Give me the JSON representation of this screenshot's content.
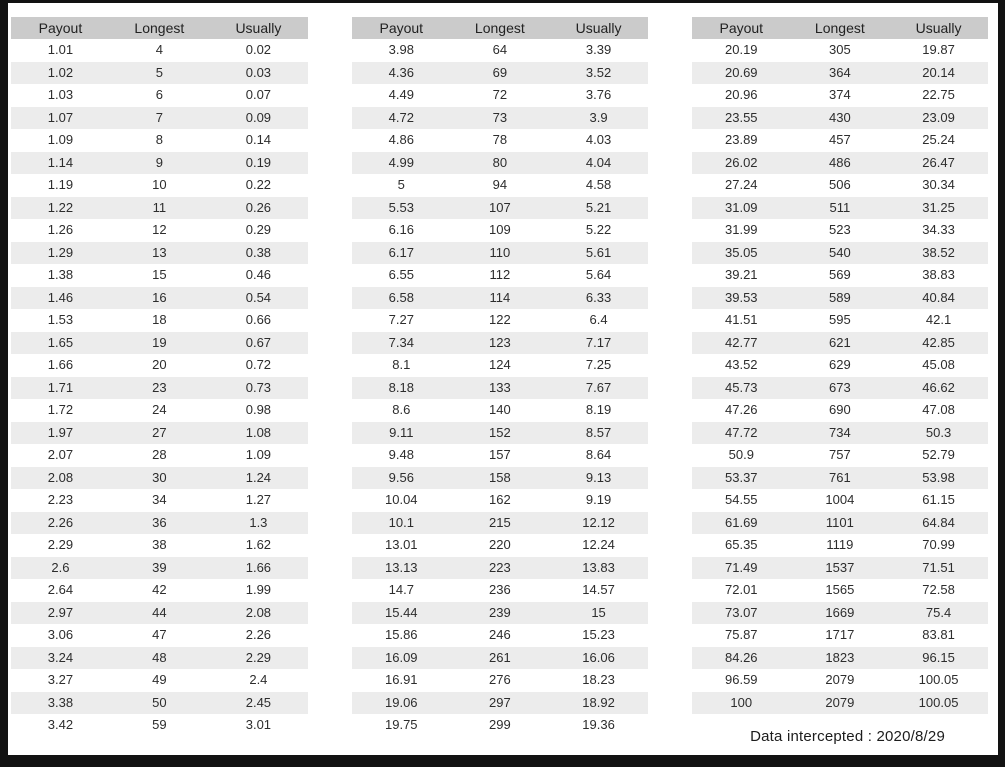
{
  "colors": {
    "outer_border": "#121212",
    "page_background": "#ffffff",
    "header_background": "#cbcbcb",
    "stripe_background": "#ececec",
    "text": "#2d2d2d"
  },
  "chart_data": {
    "type": "table",
    "columns": [
      "Payout",
      "Longest",
      "Usually"
    ],
    "caption": "Data intercepted : 2020/8/29",
    "tables": [
      {
        "rows": [
          [
            "1.01",
            "4",
            "0.02"
          ],
          [
            "1.02",
            "5",
            "0.03"
          ],
          [
            "1.03",
            "6",
            "0.07"
          ],
          [
            "1.07",
            "7",
            "0.09"
          ],
          [
            "1.09",
            "8",
            "0.14"
          ],
          [
            "1.14",
            "9",
            "0.19"
          ],
          [
            "1.19",
            "10",
            "0.22"
          ],
          [
            "1.22",
            "11",
            "0.26"
          ],
          [
            "1.26",
            "12",
            "0.29"
          ],
          [
            "1.29",
            "13",
            "0.38"
          ],
          [
            "1.38",
            "15",
            "0.46"
          ],
          [
            "1.46",
            "16",
            "0.54"
          ],
          [
            "1.53",
            "18",
            "0.66"
          ],
          [
            "1.65",
            "19",
            "0.67"
          ],
          [
            "1.66",
            "20",
            "0.72"
          ],
          [
            "1.71",
            "23",
            "0.73"
          ],
          [
            "1.72",
            "24",
            "0.98"
          ],
          [
            "1.97",
            "27",
            "1.08"
          ],
          [
            "2.07",
            "28",
            "1.09"
          ],
          [
            "2.08",
            "30",
            "1.24"
          ],
          [
            "2.23",
            "34",
            "1.27"
          ],
          [
            "2.26",
            "36",
            "1.3"
          ],
          [
            "2.29",
            "38",
            "1.62"
          ],
          [
            "2.6",
            "39",
            "1.66"
          ],
          [
            "2.64",
            "42",
            "1.99"
          ],
          [
            "2.97",
            "44",
            "2.08"
          ],
          [
            "3.06",
            "47",
            "2.26"
          ],
          [
            "3.24",
            "48",
            "2.29"
          ],
          [
            "3.27",
            "49",
            "2.4"
          ],
          [
            "3.38",
            "50",
            "2.45"
          ],
          [
            "3.42",
            "59",
            "3.01"
          ]
        ]
      },
      {
        "rows": [
          [
            "3.98",
            "64",
            "3.39"
          ],
          [
            "4.36",
            "69",
            "3.52"
          ],
          [
            "4.49",
            "72",
            "3.76"
          ],
          [
            "4.72",
            "73",
            "3.9"
          ],
          [
            "4.86",
            "78",
            "4.03"
          ],
          [
            "4.99",
            "80",
            "4.04"
          ],
          [
            "5",
            "94",
            "4.58"
          ],
          [
            "5.53",
            "107",
            "5.21"
          ],
          [
            "6.16",
            "109",
            "5.22"
          ],
          [
            "6.17",
            "110",
            "5.61"
          ],
          [
            "6.55",
            "112",
            "5.64"
          ],
          [
            "6.58",
            "114",
            "6.33"
          ],
          [
            "7.27",
            "122",
            "6.4"
          ],
          [
            "7.34",
            "123",
            "7.17"
          ],
          [
            "8.1",
            "124",
            "7.25"
          ],
          [
            "8.18",
            "133",
            "7.67"
          ],
          [
            "8.6",
            "140",
            "8.19"
          ],
          [
            "9.11",
            "152",
            "8.57"
          ],
          [
            "9.48",
            "157",
            "8.64"
          ],
          [
            "9.56",
            "158",
            "9.13"
          ],
          [
            "10.04",
            "162",
            "9.19"
          ],
          [
            "10.1",
            "215",
            "12.12"
          ],
          [
            "13.01",
            "220",
            "12.24"
          ],
          [
            "13.13",
            "223",
            "13.83"
          ],
          [
            "14.7",
            "236",
            "14.57"
          ],
          [
            "15.44",
            "239",
            "15"
          ],
          [
            "15.86",
            "246",
            "15.23"
          ],
          [
            "16.09",
            "261",
            "16.06"
          ],
          [
            "16.91",
            "276",
            "18.23"
          ],
          [
            "19.06",
            "297",
            "18.92"
          ],
          [
            "19.75",
            "299",
            "19.36"
          ]
        ]
      },
      {
        "rows": [
          [
            "20.19",
            "305",
            "19.87"
          ],
          [
            "20.69",
            "364",
            "20.14"
          ],
          [
            "20.96",
            "374",
            "22.75"
          ],
          [
            "23.55",
            "430",
            "23.09"
          ],
          [
            "23.89",
            "457",
            "25.24"
          ],
          [
            "26.02",
            "486",
            "26.47"
          ],
          [
            "27.24",
            "506",
            "30.34"
          ],
          [
            "31.09",
            "511",
            "31.25"
          ],
          [
            "31.99",
            "523",
            "34.33"
          ],
          [
            "35.05",
            "540",
            "38.52"
          ],
          [
            "39.21",
            "569",
            "38.83"
          ],
          [
            "39.53",
            "589",
            "40.84"
          ],
          [
            "41.51",
            "595",
            "42.1"
          ],
          [
            "42.77",
            "621",
            "42.85"
          ],
          [
            "43.52",
            "629",
            "45.08"
          ],
          [
            "45.73",
            "673",
            "46.62"
          ],
          [
            "47.26",
            "690",
            "47.08"
          ],
          [
            "47.72",
            "734",
            "50.3"
          ],
          [
            "50.9",
            "757",
            "52.79"
          ],
          [
            "53.37",
            "761",
            "53.98"
          ],
          [
            "54.55",
            "1004",
            "61.15"
          ],
          [
            "61.69",
            "1101",
            "64.84"
          ],
          [
            "65.35",
            "1119",
            "70.99"
          ],
          [
            "71.49",
            "1537",
            "71.51"
          ],
          [
            "72.01",
            "1565",
            "72.58"
          ],
          [
            "73.07",
            "1669",
            "75.4"
          ],
          [
            "75.87",
            "1717",
            "83.81"
          ],
          [
            "84.26",
            "1823",
            "96.15"
          ],
          [
            "96.59",
            "2079",
            "100.05"
          ],
          [
            "100",
            "2079",
            "100.05"
          ]
        ]
      }
    ]
  }
}
